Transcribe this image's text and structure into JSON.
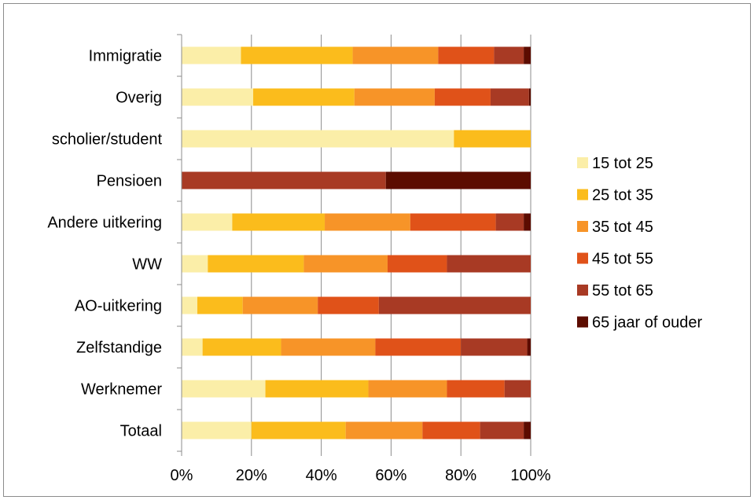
{
  "chart_data": {
    "type": "bar",
    "orientation": "horizontal",
    "stacked": "percent",
    "categories": [
      "Immigratie",
      "Overig",
      "scholier/student",
      "Pensioen",
      "Andere uitkering",
      "WW",
      "AO-uitkering",
      "Zelfstandige",
      "Werknemer",
      "Totaal"
    ],
    "series": [
      {
        "name": "15 tot 25",
        "color": "#fbeea8",
        "values": [
          17,
          20.5,
          78,
          0,
          14.5,
          7.5,
          4.5,
          6,
          24,
          20
        ]
      },
      {
        "name": "25 tot 35",
        "color": "#fbbc1c",
        "values": [
          32,
          29,
          22,
          0,
          26.5,
          27.5,
          13,
          22.5,
          29.5,
          27
        ]
      },
      {
        "name": "35 tot 45",
        "color": "#f79428",
        "values": [
          24.5,
          23,
          0,
          0,
          24.5,
          24,
          21.5,
          27,
          22.5,
          22
        ]
      },
      {
        "name": "45 tot 55",
        "color": "#e05219",
        "values": [
          16,
          16,
          0,
          0,
          24.5,
          17,
          17.5,
          24.5,
          16.5,
          16.5
        ]
      },
      {
        "name": "55 tot 65",
        "color": "#a83a24",
        "values": [
          8.5,
          11,
          0,
          58.5,
          8,
          24,
          43.5,
          19,
          7.5,
          12.5
        ]
      },
      {
        "name": "65 jaar of ouder",
        "color": "#5c0c00",
        "values": [
          2,
          0.5,
          0,
          41.5,
          2,
          0,
          0,
          1,
          0,
          2
        ]
      }
    ],
    "xlim": [
      0,
      100
    ],
    "x_ticks": [
      "0%",
      "20%",
      "40%",
      "60%",
      "80%",
      "100%"
    ],
    "grid": true,
    "legend_position": "right"
  }
}
